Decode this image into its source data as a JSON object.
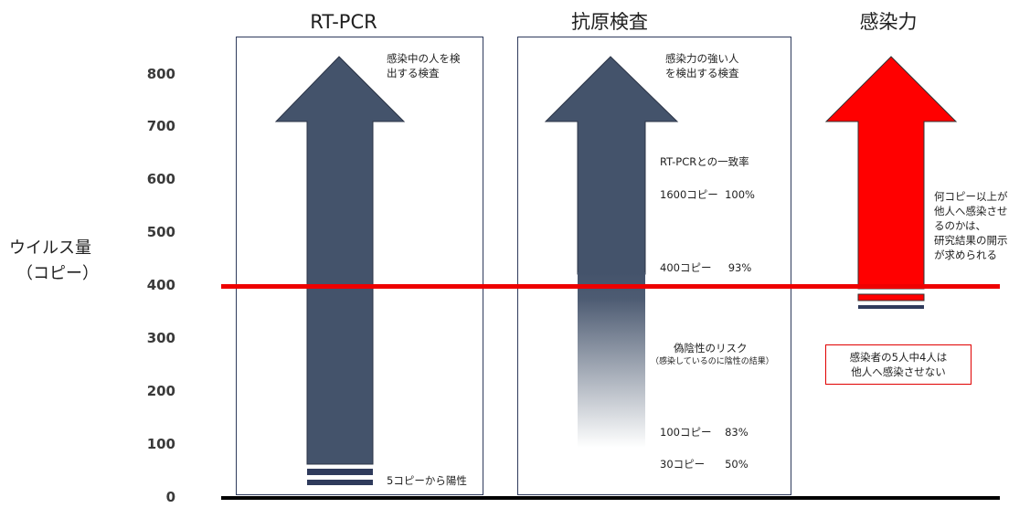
{
  "columns": {
    "rtpcr": "RT-PCR",
    "antigen": "抗原検査",
    "infectivity": "感染力"
  },
  "y_axis": {
    "label_line1": "ウイルス量",
    "label_line2": "（コピー）",
    "ticks": [
      "800",
      "700",
      "600",
      "500",
      "400",
      "300",
      "200",
      "100",
      "0"
    ]
  },
  "rtpcr_panel": {
    "desc_line1": "感染中の人を検",
    "desc_line2": "出する検査",
    "bottom_label": "5コピーから陽性"
  },
  "antigen_panel": {
    "desc_line1": "感染力の強い人",
    "desc_line2": "を検出する検査",
    "concordance_title": "RT-PCRとの一致率",
    "rate_1600": "1600コピー  100%",
    "rate_400": "400コピー     93%",
    "false_negative_title": "偽陰性のリスク",
    "false_negative_sub": "（感染しているのに陰性の結果）",
    "rate_100": "100コピー    83%",
    "rate_30": "30コピー      50%"
  },
  "infectivity_panel": {
    "note_line1": "何コピー以上が",
    "note_line2": "他人へ感染させ",
    "note_line3": "るのかは、",
    "note_line4": "研究結果の開示",
    "note_line5": "が求められる",
    "box_line1": "感染者の5人中4人は",
    "box_line2": "他人へ感染させない"
  },
  "colors": {
    "arrow_navy": "#44536b",
    "arrow_red": "#ff0000",
    "threshold_line": "#ee0000",
    "baseline": "#000000"
  }
}
